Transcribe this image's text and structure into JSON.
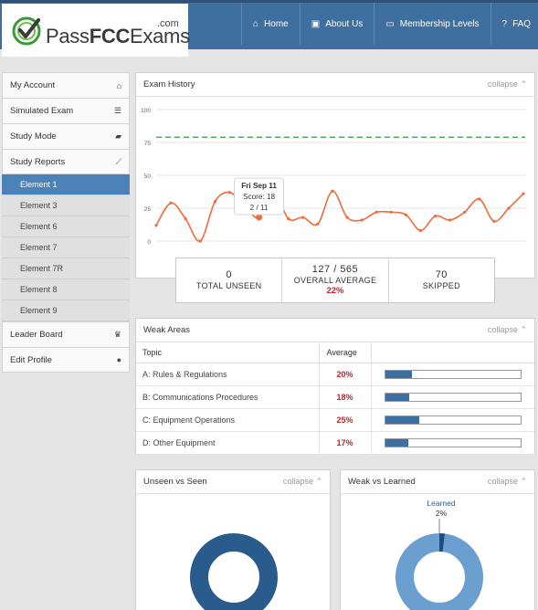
{
  "brand": {
    "name_plain": "Pass",
    "name_bold": "FCC",
    "name_tail": "Exams",
    "suffix": ".com"
  },
  "nav": [
    {
      "label": "Home",
      "icon": "home-icon"
    },
    {
      "label": "About Us",
      "icon": "user-icon"
    },
    {
      "label": "Membership Levels",
      "icon": "card-icon"
    },
    {
      "label": "FAQ",
      "icon": "question-icon"
    }
  ],
  "sidebar": {
    "items": [
      {
        "label": "My Account",
        "icon": "home-icon"
      },
      {
        "label": "Simulated Exam",
        "icon": "list-icon"
      },
      {
        "label": "Study Mode",
        "icon": "book-icon"
      },
      {
        "label": "Study Reports",
        "icon": "chart-icon"
      }
    ],
    "subitems": [
      "Element 1",
      "Element 3",
      "Element 6",
      "Element 7",
      "Element 7R",
      "Element 8",
      "Element 9"
    ],
    "active_subitem": "Element 1",
    "bottom_items": [
      {
        "label": "Leader Board",
        "icon": "trophy-icon"
      },
      {
        "label": "Edit Profile",
        "icon": "user-icon"
      }
    ]
  },
  "exam_history": {
    "title": "Exam History",
    "collapse_label": "collapse",
    "tooltip": {
      "date": "Fri Sep 11",
      "score": "Score: 18",
      "fraction": "2 / 11"
    }
  },
  "chart_data": {
    "type": "line",
    "ylim": [
      0,
      100
    ],
    "yticks": [
      0,
      25,
      50,
      75,
      100
    ],
    "grid": true,
    "target_line": 79,
    "colors": {
      "series": "#f26b3a",
      "target": "#2e9a3e"
    },
    "series": [
      {
        "values": [
          12,
          29,
          17,
          0,
          30,
          37,
          27,
          18,
          38,
          17,
          18,
          13,
          38,
          18,
          16,
          22,
          22,
          20,
          8,
          19,
          16,
          22,
          32,
          15,
          25,
          36
        ]
      }
    ],
    "highlight_index": 7
  },
  "stats": [
    {
      "value": "0",
      "label": "TOTAL UNSEEN"
    },
    {
      "value": "127 / 565",
      "label": "OVERALL AVERAGE",
      "pct": "22%"
    },
    {
      "value": "70",
      "label": "SKIPPED"
    }
  ],
  "weak_areas": {
    "title": "Weak Areas",
    "collapse_label": "collapse",
    "headers": [
      "Topic",
      "Average"
    ],
    "rows": [
      {
        "topic": "A: Rules & Regulations",
        "avg": "20%",
        "fill": 0.2
      },
      {
        "topic": "B: Communications Procedures",
        "avg": "18%",
        "fill": 0.18
      },
      {
        "topic": "C: Equipment Operations",
        "avg": "25%",
        "fill": 0.25
      },
      {
        "topic": "D: Other Equipment",
        "avg": "17%",
        "fill": 0.17
      }
    ]
  },
  "unseen_vs_seen": {
    "title": "Unseen vs Seen",
    "collapse_label": "collapse",
    "color": "#2a5b8d"
  },
  "weak_vs_learned": {
    "title": "Weak vs Learned",
    "collapse_label": "collapse",
    "label": "Learned",
    "pct": "2%",
    "learned_fraction": 0.02,
    "colors": {
      "weak": "#6b9fd0",
      "learned": "#1e4e80"
    }
  }
}
